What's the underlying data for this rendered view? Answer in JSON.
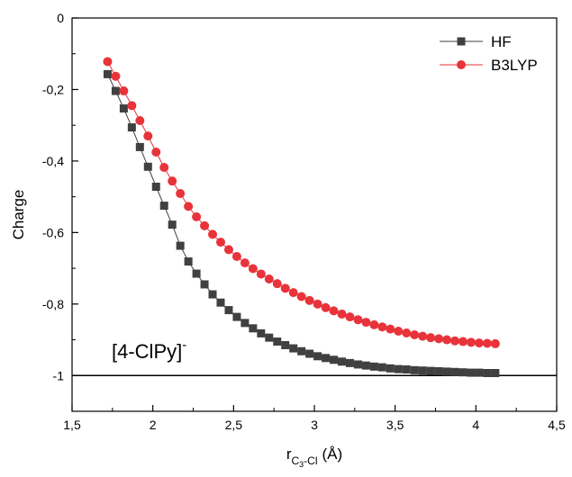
{
  "chart_data": {
    "type": "line",
    "title": "",
    "xlabel": {
      "main": "r",
      "sub": "C",
      "sub2": "3",
      "sub3": "-Cl",
      "unit": "(Å)"
    },
    "ylabel": "Charge",
    "xlim": [
      1.5,
      4.5
    ],
    "ylim": [
      -1.1,
      0
    ],
    "x_ticks": [
      1.5,
      2,
      2.5,
      3,
      3.5,
      4,
      4.5
    ],
    "x_tick_labels": [
      "1,5",
      "2",
      "2,5",
      "3",
      "3,5",
      "4",
      "4,5"
    ],
    "y_ticks": [
      0,
      -0.2,
      -0.4,
      -0.6,
      -0.8,
      -1
    ],
    "y_tick_labels": [
      "0",
      "-0,2",
      "-0,4",
      "-0,6",
      "-0,8",
      "-1"
    ],
    "reference_line": -1,
    "annotation": {
      "text": "[4-ClPy]",
      "superscript": "-"
    },
    "legend_position": "top-right",
    "x": [
      1.72,
      1.77,
      1.82,
      1.87,
      1.92,
      1.97,
      2.02,
      2.07,
      2.12,
      2.17,
      2.22,
      2.27,
      2.32,
      2.37,
      2.42,
      2.47,
      2.52,
      2.57,
      2.62,
      2.67,
      2.72,
      2.77,
      2.82,
      2.87,
      2.92,
      2.97,
      3.02,
      3.07,
      3.12,
      3.17,
      3.22,
      3.27,
      3.32,
      3.37,
      3.42,
      3.47,
      3.52,
      3.57,
      3.62,
      3.67,
      3.72,
      3.77,
      3.82,
      3.87,
      3.92,
      3.97,
      4.02,
      4.07,
      4.12
    ],
    "series": [
      {
        "name": "HF",
        "color": "#404040",
        "marker": "square",
        "values": [
          -0.157,
          -0.204,
          -0.253,
          -0.306,
          -0.361,
          -0.416,
          -0.472,
          -0.525,
          -0.578,
          -0.637,
          -0.681,
          -0.715,
          -0.745,
          -0.773,
          -0.796,
          -0.817,
          -0.836,
          -0.853,
          -0.868,
          -0.882,
          -0.894,
          -0.905,
          -0.915,
          -0.924,
          -0.932,
          -0.939,
          -0.946,
          -0.951,
          -0.956,
          -0.961,
          -0.965,
          -0.969,
          -0.972,
          -0.975,
          -0.977,
          -0.98,
          -0.982,
          -0.983,
          -0.985,
          -0.986,
          -0.987,
          -0.988,
          -0.989,
          -0.99,
          -0.991,
          -0.992,
          -0.992,
          -0.993,
          -0.993
        ]
      },
      {
        "name": "B3LYP",
        "color": "#e8333a",
        "marker": "circle",
        "values": [
          -0.122,
          -0.163,
          -0.204,
          -0.245,
          -0.287,
          -0.33,
          -0.375,
          -0.418,
          -0.456,
          -0.491,
          -0.527,
          -0.556,
          -0.581,
          -0.605,
          -0.627,
          -0.648,
          -0.667,
          -0.685,
          -0.701,
          -0.716,
          -0.73,
          -0.743,
          -0.756,
          -0.768,
          -0.779,
          -0.79,
          -0.8,
          -0.81,
          -0.819,
          -0.828,
          -0.836,
          -0.844,
          -0.851,
          -0.858,
          -0.864,
          -0.87,
          -0.876,
          -0.881,
          -0.886,
          -0.89,
          -0.894,
          -0.897,
          -0.9,
          -0.903,
          -0.905,
          -0.907,
          -0.909,
          -0.91,
          -0.911
        ]
      }
    ]
  }
}
